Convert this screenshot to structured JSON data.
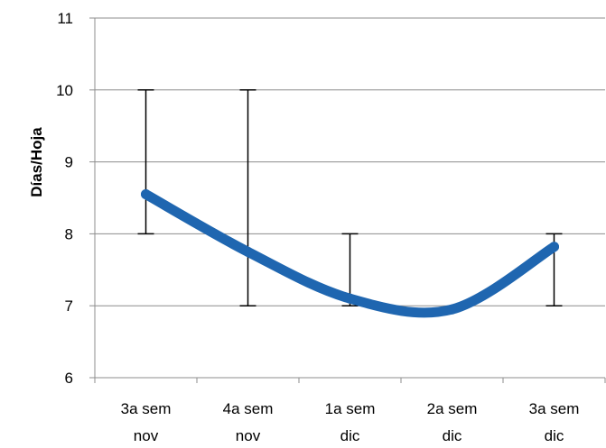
{
  "chart_data": {
    "type": "line",
    "title": "",
    "xlabel": "",
    "ylabel": "Días/Hoja",
    "ylim": [
      6,
      11
    ],
    "yticks": [
      6,
      7,
      8,
      9,
      10,
      11
    ],
    "grid": "horizontal",
    "legend": "none",
    "categories": [
      [
        "3a sem",
        "nov"
      ],
      [
        "4a sem",
        "nov"
      ],
      [
        "1a sem",
        "dic"
      ],
      [
        "2a sem",
        "dic"
      ],
      [
        "3a sem",
        "dic"
      ]
    ],
    "series": [
      {
        "values": [
          8.55,
          7.75,
          7.1,
          6.95,
          7.82
        ],
        "color": "#1f66b0",
        "smooth": true,
        "error_bars": [
          {
            "low": 8,
            "high": 10
          },
          {
            "low": 7,
            "high": 10
          },
          {
            "low": 7,
            "high": 8
          },
          null,
          {
            "low": 7,
            "high": 8
          }
        ]
      }
    ]
  }
}
